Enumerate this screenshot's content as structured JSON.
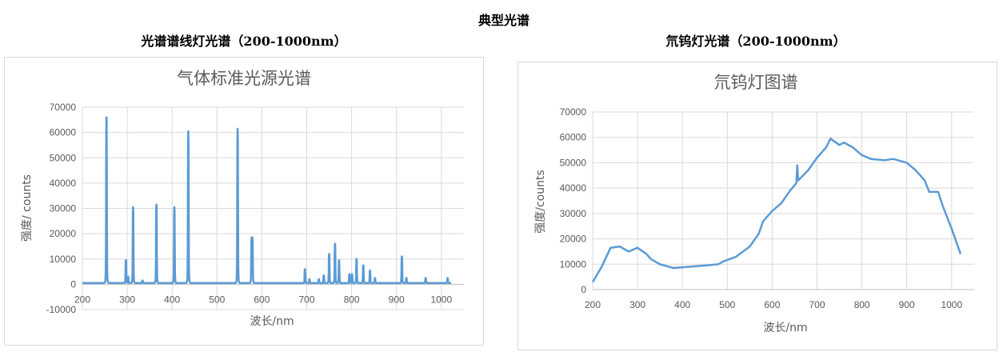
{
  "page_title": "典型光谱",
  "chart_data": [
    {
      "type": "line",
      "heading": "光谱谱线灯光谱（200-1000nm）",
      "title": "气体标准光源光谱",
      "xlabel": "波长/nm",
      "ylabel": "强度/ counts",
      "xlim": [
        200,
        1025
      ],
      "ylim": [
        -10000,
        70000
      ],
      "xticks": [
        200,
        300,
        400,
        500,
        600,
        700,
        800,
        900,
        1000
      ],
      "yticks": [
        -10000,
        0,
        10000,
        20000,
        30000,
        40000,
        50000,
        60000,
        70000
      ],
      "grid": true,
      "color": "#5b9bd5",
      "baseline": 500,
      "peaks": [
        [
          253.7,
          65500
        ],
        [
          297,
          9000
        ],
        [
          302,
          2500
        ],
        [
          313,
          30000
        ],
        [
          334,
          1000
        ],
        [
          365,
          31000
        ],
        [
          405,
          30000
        ],
        [
          436,
          60000
        ],
        [
          546,
          61000
        ],
        [
          577,
          17000
        ],
        [
          579,
          17000
        ],
        [
          696,
          5500
        ],
        [
          706,
          1500
        ],
        [
          727,
          1500
        ],
        [
          738,
          3000
        ],
        [
          750,
          11500
        ],
        [
          763,
          15500
        ],
        [
          772,
          9000
        ],
        [
          795,
          3500
        ],
        [
          801,
          3500
        ],
        [
          811,
          9500
        ],
        [
          826,
          7000
        ],
        [
          841,
          5000
        ],
        [
          852,
          2000
        ],
        [
          912,
          10500
        ],
        [
          922,
          2000
        ],
        [
          965,
          2000
        ],
        [
          1014,
          2000
        ]
      ]
    },
    {
      "type": "line",
      "heading": "氘钨灯光谱（200-1000nm）",
      "title": "氘钨灯图谱",
      "xlabel": "波长/nm",
      "ylabel": "强度/counts",
      "xlim": [
        200,
        1025
      ],
      "ylim": [
        0,
        70000
      ],
      "xticks": [
        200,
        300,
        400,
        500,
        600,
        700,
        800,
        900,
        1000
      ],
      "yticks": [
        0,
        10000,
        20000,
        30000,
        40000,
        50000,
        60000,
        70000
      ],
      "grid": true,
      "color": "#5b9bd5",
      "x": [
        200,
        220,
        240,
        260,
        280,
        300,
        320,
        330,
        350,
        380,
        400,
        450,
        480,
        490,
        520,
        550,
        570,
        580,
        600,
        620,
        640,
        654,
        656,
        658,
        680,
        700,
        720,
        730,
        750,
        760,
        780,
        800,
        820,
        850,
        870,
        900,
        920,
        940,
        950,
        970,
        980,
        1000,
        1020
      ],
      "y": [
        3000,
        9000,
        16500,
        17000,
        15000,
        16500,
        14000,
        12000,
        10000,
        8500,
        8800,
        9500,
        10000,
        11000,
        13000,
        17000,
        22000,
        27000,
        31000,
        34000,
        39000,
        42000,
        49000,
        43000,
        47000,
        52000,
        56000,
        59500,
        57000,
        58000,
        56000,
        53000,
        51500,
        51000,
        51500,
        50000,
        47000,
        43000,
        38500,
        38500,
        33000,
        24000,
        14000
      ]
    }
  ]
}
